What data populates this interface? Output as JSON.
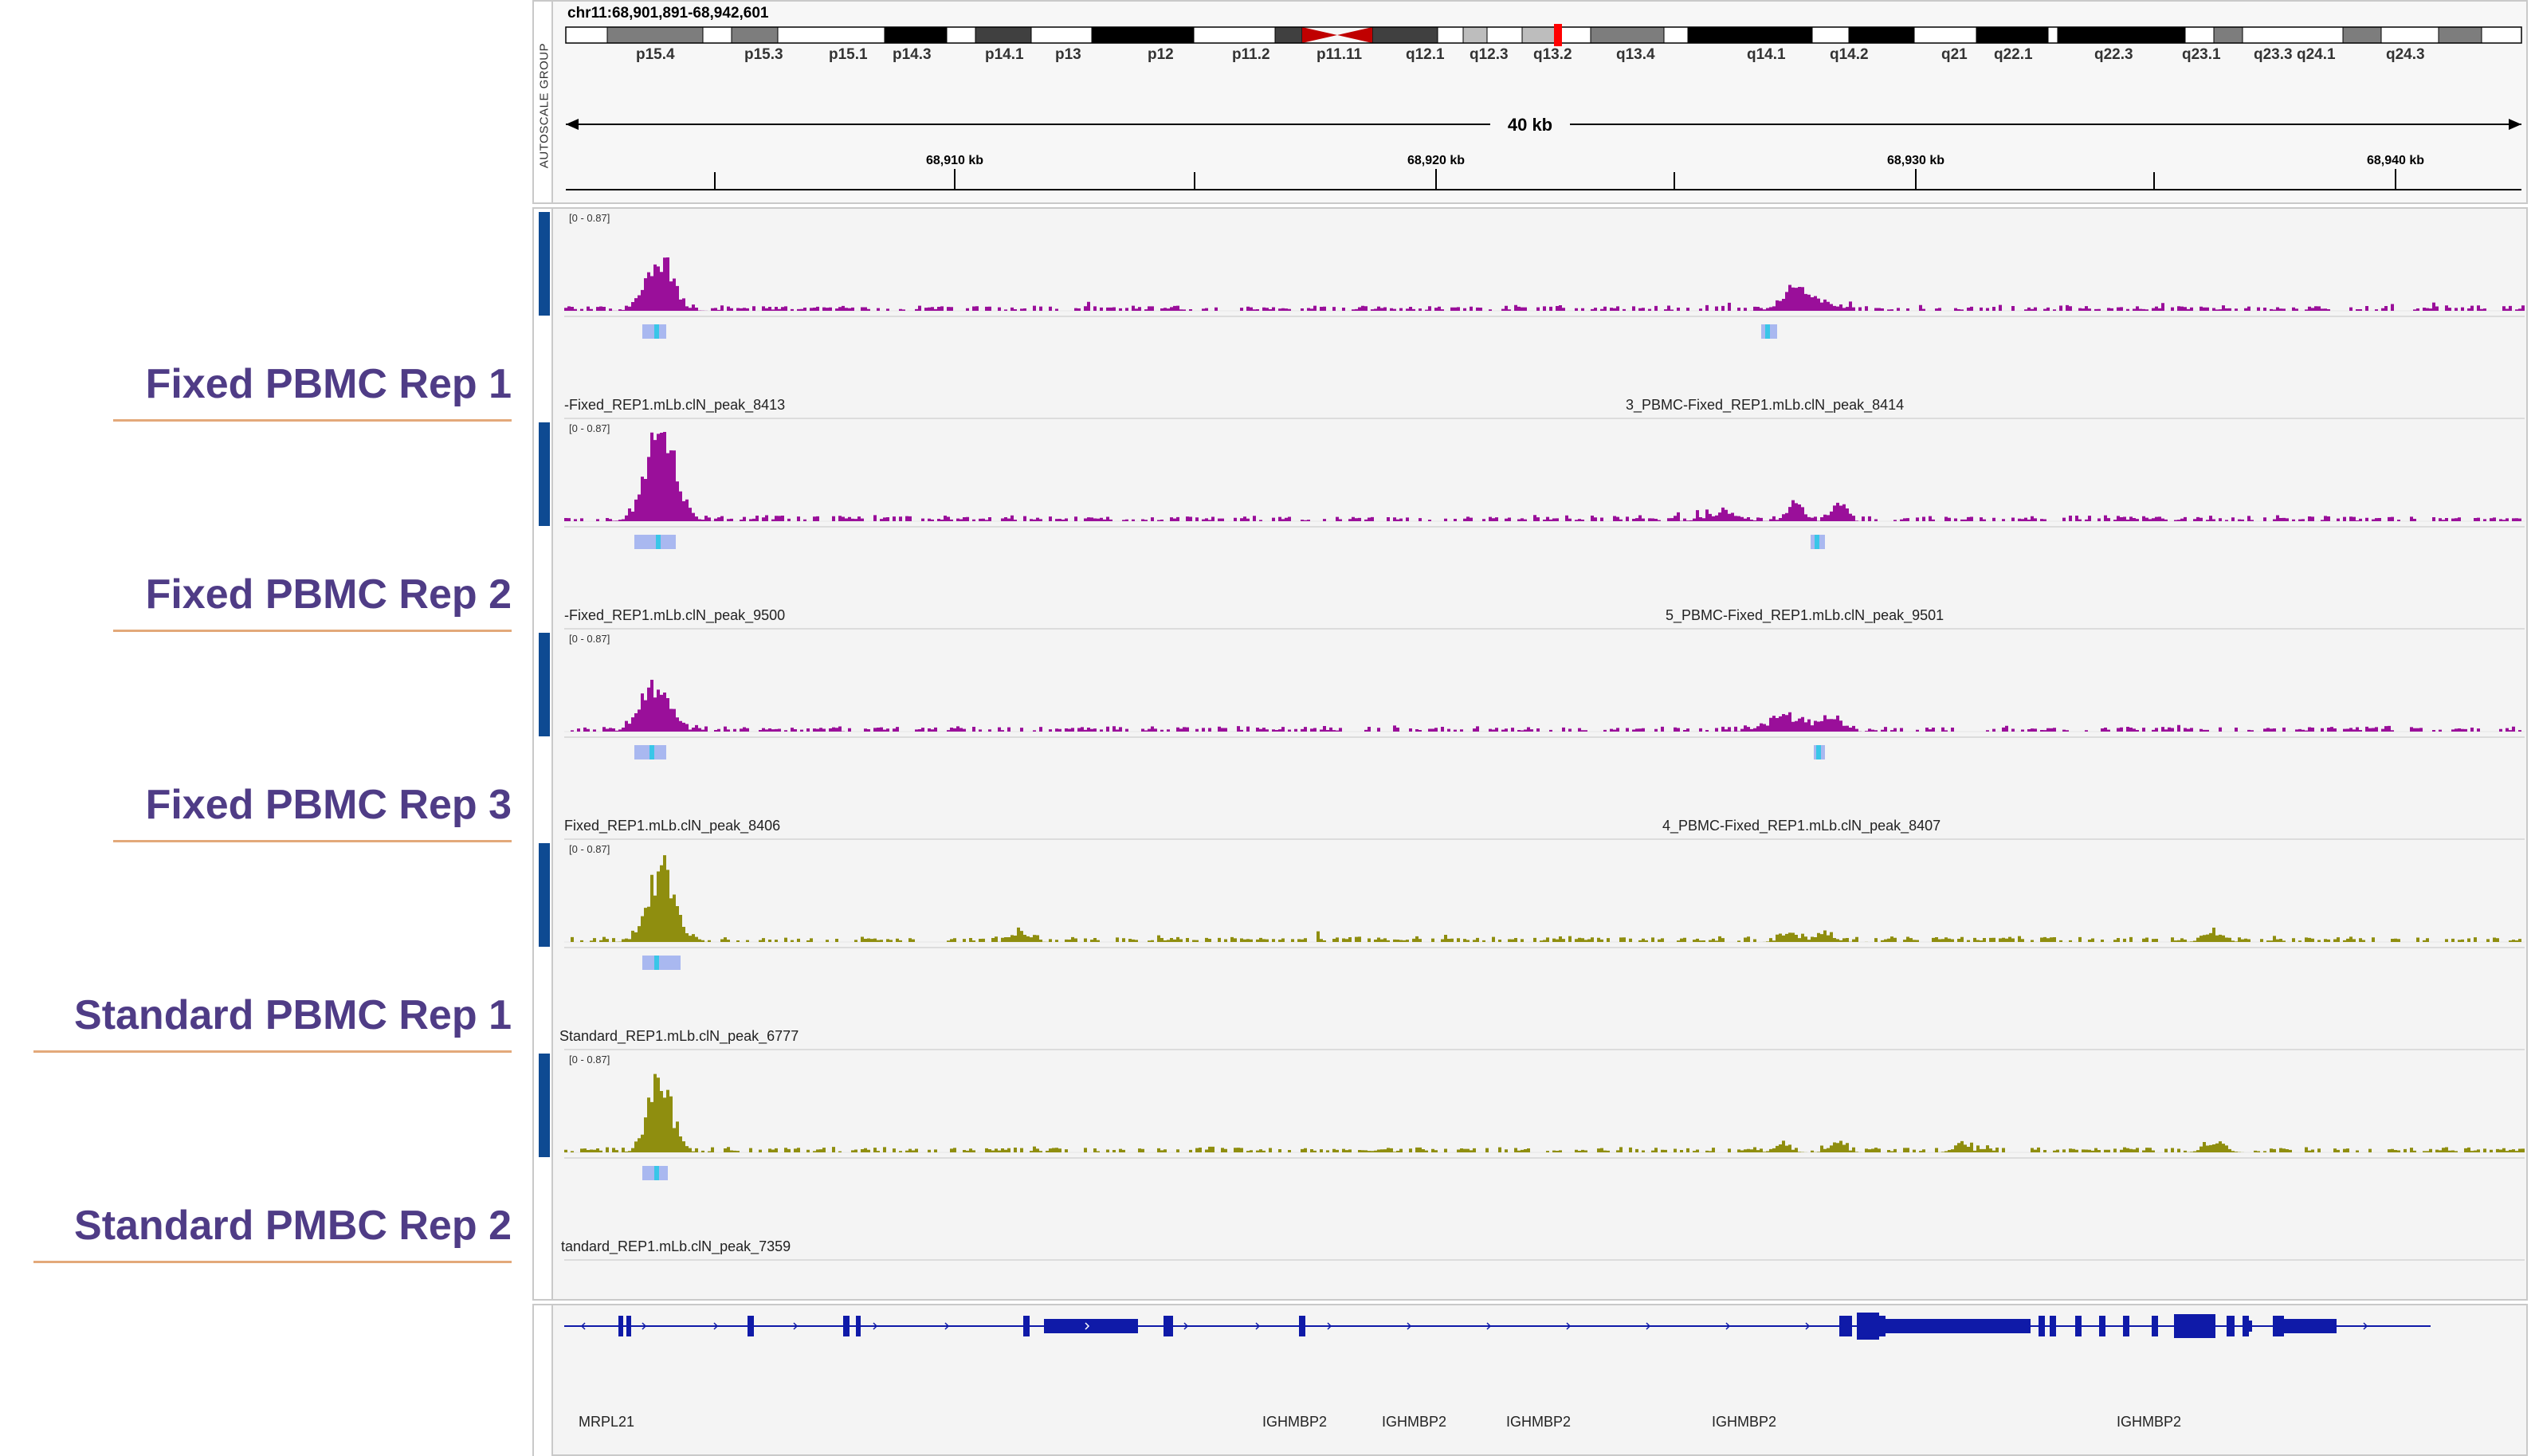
{
  "locus": "chr11:68,901,891-68,942,601",
  "autoscale_label": "AUTOSCALE GROUP",
  "ruler": {
    "span_label": "40 kb",
    "ticks": [
      "68,910 kb",
      "68,920 kb",
      "68,930 kb",
      "68,940 kb"
    ]
  },
  "cytobands": [
    "p15.4",
    "p15.3",
    "p15.1",
    "p14.3",
    "p14.1",
    "p13",
    "p12",
    "p11.2",
    "p11.11",
    "q12.1",
    "q12.3",
    "q13.2",
    "q13.4",
    "q14.1",
    "q14.2",
    "q21",
    "q22.1",
    "q22.3",
    "q23.1",
    "q23.3",
    "q24.1",
    "q24.3"
  ],
  "colors": {
    "fixed_signal": "#9a0f9a",
    "standard_signal": "#8f8e0f",
    "gene": "#0f1aa8",
    "label": "#4f3c86",
    "label_rule": "#e3a97a",
    "selection_bar": "#0e4a92",
    "peak_box": "#a9b8f0",
    "peak_summit": "#39c6e8",
    "centromere": "#c00000",
    "region_marker": "#ff0000"
  },
  "tracks": [
    {
      "label": "Fixed PBMC Rep 1",
      "range": "[0 - 0.87]",
      "type": "fixed",
      "peaks": [
        "-Fixed_REP1.mLb.clN_peak_8413",
        "3_PBMC-Fixed_REP1.mLb.clN_peak_8414"
      ]
    },
    {
      "label": "Fixed PBMC Rep 2",
      "range": "[0 - 0.87]",
      "type": "fixed",
      "peaks": [
        "-Fixed_REP1.mLb.clN_peak_9500",
        "5_PBMC-Fixed_REP1.mLb.clN_peak_9501"
      ]
    },
    {
      "label": "Fixed PBMC Rep 3",
      "range": "[0 - 0.87]",
      "type": "fixed",
      "peaks": [
        "Fixed_REP1.mLb.clN_peak_8406",
        "4_PBMC-Fixed_REP1.mLb.clN_peak_8407"
      ]
    },
    {
      "label": "Standard PBMC Rep 1",
      "range": "[0 - 0.87]",
      "type": "standard",
      "peaks": [
        "Standard_REP1.mLb.clN_peak_6777"
      ]
    },
    {
      "label": "Standard PMBC Rep 2",
      "range": "[0 - 0.87]",
      "type": "standard",
      "peaks": [
        "tandard_REP1.mLb.clN_peak_7359"
      ]
    }
  ],
  "genes": [
    "MRPL21",
    "IGHMBP2",
    "IGHMBP2",
    "IGHMBP2",
    "IGHMBP2",
    "IGHMBP2"
  ]
}
